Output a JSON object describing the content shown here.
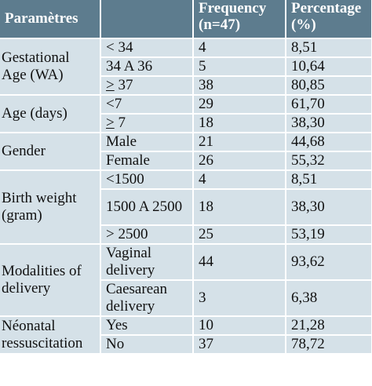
{
  "headers": {
    "param": "Paramètres",
    "freq_line1": "Frequency",
    "freq_line2": "(n=47)",
    "pct_line1": "Percentage",
    "pct_line2": "(%)"
  },
  "groups": [
    {
      "label": "Gestational Age (WA)",
      "rows": [
        {
          "sign": "",
          "category": "< 34",
          "frequency": "4",
          "percentage": "8,51"
        },
        {
          "sign": "",
          "category": "34 A 36",
          "frequency": "5",
          "percentage": "10,64"
        },
        {
          "sign": ">",
          "category": " 37",
          "frequency": "38",
          "percentage": "80,85"
        }
      ]
    },
    {
      "label": "Age (days)",
      "rows": [
        {
          "sign": "",
          "category": "<7",
          "frequency": "29",
          "percentage": "61,70"
        },
        {
          "sign": ">",
          "category": " 7",
          "frequency": "18",
          "percentage": "38,30"
        }
      ]
    },
    {
      "label": "Gender",
      "rows": [
        {
          "sign": "",
          "category": "Male",
          "frequency": "21",
          "percentage": "44,68"
        },
        {
          "sign": "",
          "category": "Female",
          "frequency": "26",
          "percentage": "55,32"
        }
      ]
    },
    {
      "label": "Birth weight (gram)",
      "rows": [
        {
          "sign": "",
          "category": "<1500",
          "frequency": "4",
          "percentage": "8,51"
        },
        {
          "sign": "",
          "category": "1500 A 2500",
          "frequency": "18",
          "percentage": "38,30"
        },
        {
          "sign": "",
          "category": "> 2500",
          "frequency": "25",
          "percentage": "53,19"
        }
      ]
    },
    {
      "label": "Modalities of delivery",
      "rows": [
        {
          "sign": "",
          "category": "Vaginal delivery",
          "frequency": "44",
          "percentage": "93,62"
        },
        {
          "sign": "",
          "category": "Caesarean delivery",
          "frequency": "3",
          "percentage": "6,38"
        }
      ]
    },
    {
      "label": "Néonatal ressuscitation",
      "rows": [
        {
          "sign": "",
          "category": "Yes",
          "frequency": "10",
          "percentage": "21,28"
        },
        {
          "sign": "",
          "category": "No",
          "frequency": "37",
          "percentage": "78,72"
        }
      ]
    }
  ]
}
